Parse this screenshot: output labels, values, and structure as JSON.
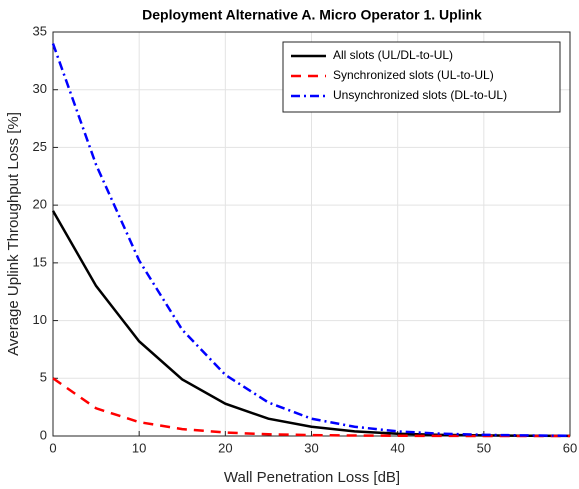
{
  "chart_data": {
    "type": "line",
    "title": "Deployment Alternative A. Micro Operator 1. Uplink",
    "xlabel": "Wall Penetration Loss [dB]",
    "ylabel": "Average Uplink Throughput Loss [%]",
    "x": [
      0,
      5,
      10,
      15,
      20,
      25,
      30,
      35,
      40,
      45,
      50,
      55,
      60
    ],
    "series": [
      {
        "name": "All slots (UL/DL-to-UL)",
        "color": "#000000",
        "style": "solid",
        "values": [
          19.5,
          13,
          8.2,
          4.9,
          2.8,
          1.5,
          0.8,
          0.4,
          0.2,
          0.1,
          0.05,
          0.02,
          0.01
        ]
      },
      {
        "name": "Synchronized slots (UL-to-UL)",
        "color": "#ff0000",
        "style": "dashed",
        "values": [
          5,
          2.4,
          1.2,
          0.6,
          0.3,
          0.15,
          0.08,
          0.04,
          0.02,
          0.01,
          0,
          0,
          0
        ]
      },
      {
        "name": "Unsynchronized slots (DL-to-UL)",
        "color": "#0000ff",
        "style": "dashdot",
        "values": [
          34,
          23.5,
          15.2,
          9.2,
          5.3,
          2.9,
          1.5,
          0.8,
          0.4,
          0.2,
          0.1,
          0.05,
          0.02
        ]
      }
    ],
    "xlim": [
      0,
      60
    ],
    "xticks": [
      0,
      10,
      20,
      30,
      40,
      50,
      60
    ],
    "ylim": [
      0,
      35
    ],
    "yticks": [
      0,
      5,
      10,
      15,
      20,
      25,
      30,
      35
    ],
    "grid": true,
    "legend": "upper right"
  }
}
